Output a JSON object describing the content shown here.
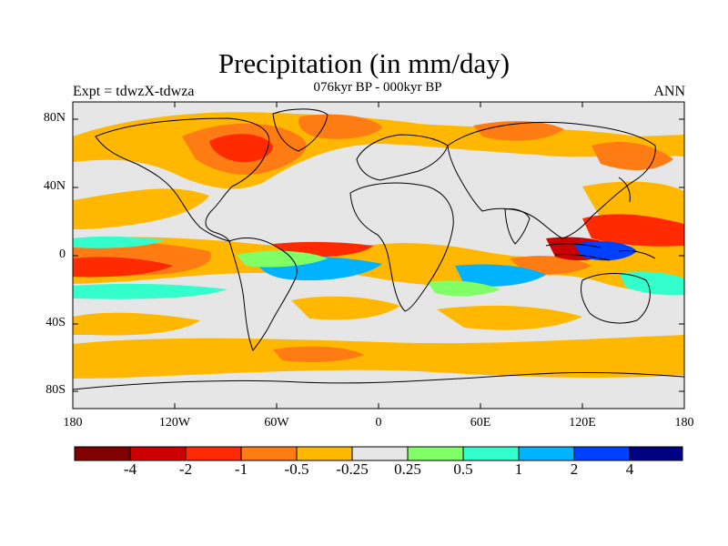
{
  "header": {
    "title": "Precipitation (in mm/day)",
    "left_label": "Expt = tdwzX-tdwza",
    "center_label": "076kyr BP - 000kyr BP",
    "right_label": "ANN"
  },
  "map": {
    "lat_ticks": [
      "80N",
      "40N",
      "0",
      "40S",
      "80S"
    ],
    "lon_ticks": [
      "180",
      "120W",
      "60W",
      "0",
      "60E",
      "120E",
      "180"
    ],
    "background_color": "#e6e6e6"
  },
  "colorbar": {
    "colors": [
      "#800000",
      "#cc0000",
      "#ff2a00",
      "#ff7b14",
      "#ffb700",
      "#e6e6e6",
      "#80ff66",
      "#33ffcc",
      "#00b3ff",
      "#0040ff",
      "#000080"
    ],
    "labels": [
      "-4",
      "-2",
      "-1",
      "-0.5",
      "-0.25",
      "0.25",
      "0.5",
      "1",
      "2",
      "4"
    ]
  }
}
